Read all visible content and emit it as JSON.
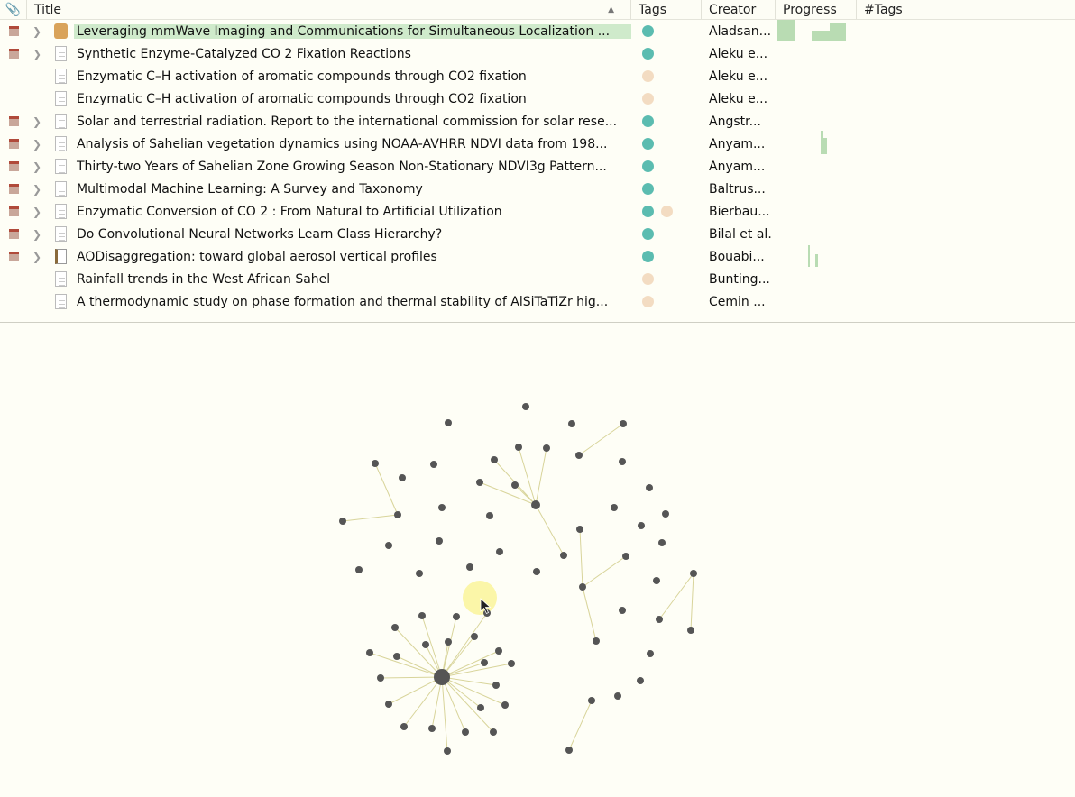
{
  "columns": {
    "attachment_icon": "paperclip-icon",
    "title": "Title",
    "tags": "Tags",
    "creator": "Creator",
    "progress": "Progress",
    "tag_count": "#Tags",
    "sort": "ascending"
  },
  "colors": {
    "tag_teal": "#5bbcb0",
    "tag_peach": "#f3dcc2",
    "highlight": "#cfeacb",
    "node": "#555555",
    "edge": "#d8d49a",
    "cursor_halo": "#fbf6a8"
  },
  "rows": [
    {
      "title": "Leveraging mmWave Imaging and Communications for Simultaneous Localization ...",
      "creator": "Aladsan...",
      "tags": [
        "teal"
      ],
      "pdf": true,
      "expand": true,
      "icon": "person-doc",
      "selected": true
    },
    {
      "title": "Synthetic Enzyme-Catalyzed CO 2 Fixation Reactions",
      "creator": "Aleku e...",
      "tags": [
        "teal"
      ],
      "pdf": true,
      "expand": true,
      "icon": "doc"
    },
    {
      "title": "Enzymatic C–H activation of aromatic compounds through CO2 fixation",
      "creator": "Aleku e...",
      "tags": [
        "peach"
      ],
      "pdf": false,
      "expand": false,
      "icon": "doc"
    },
    {
      "title": "Enzymatic C–H activation of aromatic compounds through CO2 fixation",
      "creator": "Aleku e...",
      "tags": [
        "peach"
      ],
      "pdf": false,
      "expand": false,
      "icon": "doc"
    },
    {
      "title": "Solar and terrestrial radiation. Report to the international commission for solar rese...",
      "creator": "Angstr...",
      "tags": [
        "teal"
      ],
      "pdf": true,
      "expand": true,
      "icon": "doc"
    },
    {
      "title": "Analysis of Sahelian vegetation dynamics using NOAA-AVHRR NDVI data from 198...",
      "creator": "Anyam...",
      "tags": [
        "teal"
      ],
      "pdf": true,
      "expand": true,
      "icon": "doc"
    },
    {
      "title": "Thirty-two Years of Sahelian Zone Growing Season Non-Stationary NDVI3g Pattern...",
      "creator": "Anyam...",
      "tags": [
        "teal"
      ],
      "pdf": true,
      "expand": true,
      "icon": "doc"
    },
    {
      "title": "Multimodal Machine Learning: A Survey and Taxonomy",
      "creator": "Baltrus...",
      "tags": [
        "teal"
      ],
      "pdf": true,
      "expand": true,
      "icon": "doc"
    },
    {
      "title": "Enzymatic Conversion of CO 2 : From Natural to Artificial Utilization",
      "creator": "Bierbau...",
      "tags": [
        "teal",
        "peach"
      ],
      "pdf": true,
      "expand": true,
      "icon": "doc"
    },
    {
      "title": "Do Convolutional Neural Networks Learn Class Hierarchy?",
      "creator": "Bilal et al.",
      "tags": [
        "teal"
      ],
      "pdf": true,
      "expand": true,
      "icon": "doc"
    },
    {
      "title": "AODisaggregation: toward global aerosol vertical profiles",
      "creator": "Bouabi...",
      "tags": [
        "teal"
      ],
      "pdf": true,
      "expand": true,
      "icon": "book"
    },
    {
      "title": "Rainfall trends in the West African Sahel",
      "creator": "Bunting...",
      "tags": [
        "peach"
      ],
      "pdf": false,
      "expand": false,
      "icon": "doc"
    },
    {
      "title": "A thermodynamic study on phase formation and thermal stability of AlSiTaTiZr hig...",
      "creator": "Cemin ...",
      "tags": [
        "peach"
      ],
      "pdf": false,
      "expand": false,
      "icon": "doc"
    }
  ]
}
